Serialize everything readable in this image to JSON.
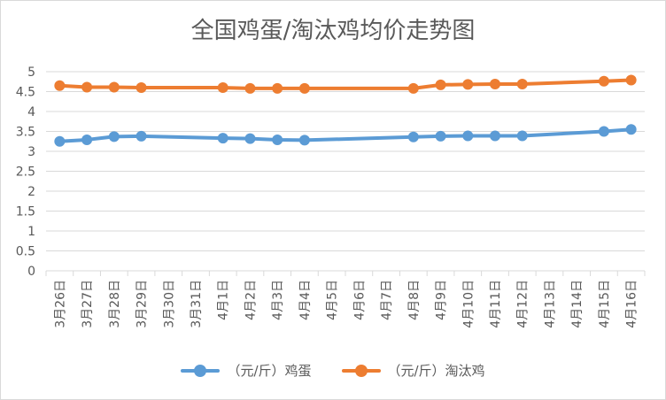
{
  "chart_data": {
    "type": "line",
    "title": "全国鸡蛋/淘汰鸡均价走势图",
    "xlabel": "",
    "ylabel": "",
    "ylim": [
      0,
      5
    ],
    "yticks": [
      "0",
      "0.5",
      "1",
      "1.5",
      "2",
      "2.5",
      "3",
      "3.5",
      "4",
      "4.5",
      "5"
    ],
    "grid": true,
    "legend_position": "bottom",
    "categories": [
      "3月26日",
      "3月27日",
      "3月28日",
      "3月29日",
      "3月30日",
      "3月31日",
      "4月1日",
      "4月2日",
      "4月3日",
      "4月4日",
      "4月5日",
      "4月6日",
      "4月7日",
      "4月8日",
      "4月9日",
      "4月10日",
      "4月11日",
      "4月12日",
      "4月13日",
      "4月14日",
      "4月15日",
      "4月16日"
    ],
    "series": [
      {
        "name": "（元/斤）鸡蛋",
        "color": "#5b9bd5",
        "values": [
          3.25,
          3.29,
          3.37,
          3.38,
          null,
          null,
          3.33,
          3.32,
          3.29,
          3.28,
          null,
          null,
          null,
          3.36,
          3.38,
          3.39,
          3.39,
          3.39,
          null,
          null,
          3.5,
          3.55
        ]
      },
      {
        "name": "（元/斤）淘汰鸡",
        "color": "#ed7d31",
        "values": [
          4.65,
          4.61,
          4.61,
          4.6,
          null,
          null,
          4.6,
          4.58,
          4.58,
          4.58,
          null,
          null,
          null,
          4.58,
          4.67,
          4.68,
          4.69,
          4.69,
          null,
          null,
          4.76,
          4.79
        ]
      }
    ]
  }
}
